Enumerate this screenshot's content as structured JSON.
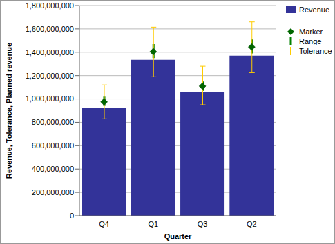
{
  "chart_data": {
    "type": "bar",
    "x_label": "Quarter",
    "y_label": "Revenue, Tolerance, Planned revenue",
    "categories": [
      "Q4",
      "Q1",
      "Q3",
      "Q2"
    ],
    "series": [
      {
        "name": "Revenue",
        "type": "bar",
        "color": "#333399",
        "values": [
          925000000,
          1335000000,
          1060000000,
          1370000000
        ]
      },
      {
        "name": "Marker",
        "type": "scatter",
        "marker": "diamond",
        "color": "#006600",
        "values": [
          975000000,
          1405000000,
          1110000000,
          1445000000
        ]
      },
      {
        "name": "Range",
        "type": "range",
        "line_style": "solid",
        "color": "#008000",
        "low": [
          940000000,
          1350000000,
          1070000000,
          1390000000
        ],
        "high": [
          1020000000,
          1470000000,
          1150000000,
          1510000000
        ]
      },
      {
        "name": "Tolerance",
        "type": "range",
        "line_style": "capped",
        "color": "#FFCC00",
        "low": [
          830000000,
          1190000000,
          950000000,
          1225000000
        ],
        "high": [
          1120000000,
          1615000000,
          1280000000,
          1660000000
        ]
      }
    ],
    "ylim": [
      0,
      1800000000
    ],
    "yticks": [
      0,
      {
        "value": 200000000,
        "label": "200,000,000"
      },
      {
        "value": 400000000,
        "label": "400,000,000"
      },
      {
        "value": 600000000,
        "label": "600,000,000"
      },
      {
        "value": 800000000,
        "label": "800,000,000"
      },
      {
        "value": 1000000000,
        "label": "1,000,000,000"
      },
      {
        "value": 1200000000,
        "label": "1,200,000,000"
      },
      {
        "value": 1400000000,
        "label": "1,400,000,000"
      },
      {
        "value": 1600000000,
        "label": "1,600,000,000"
      },
      {
        "value": 1800000000,
        "label": "1,800,000,000"
      }
    ],
    "grid": true,
    "legend": "right"
  }
}
